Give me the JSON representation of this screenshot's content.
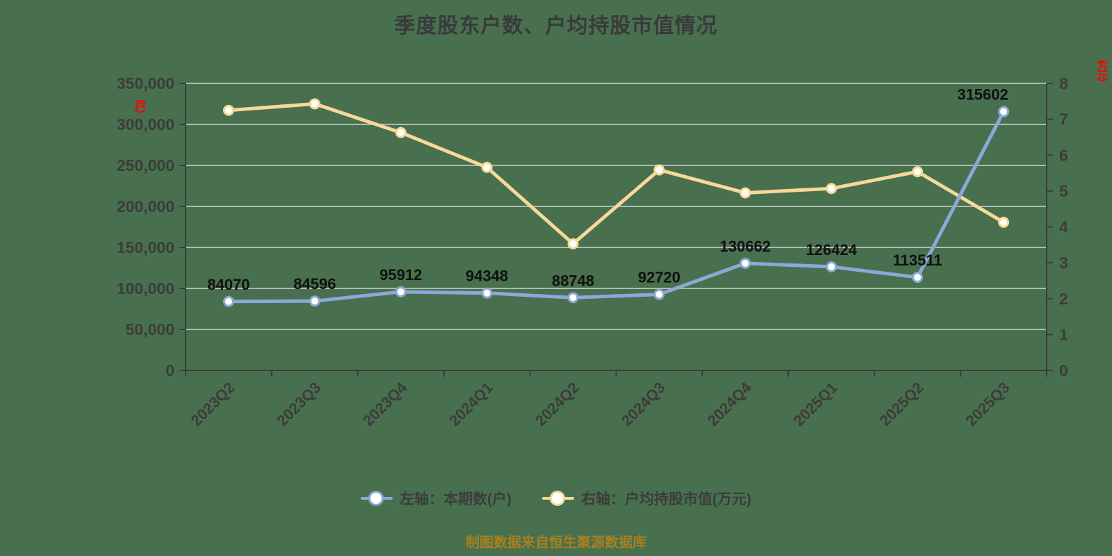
{
  "title": "季度股东户数、户均持股市值情况",
  "left_axis": {
    "unit_label": "（户）",
    "ticks": [
      "350,000",
      "300,000",
      "250,000",
      "200,000",
      "150,000",
      "100,000",
      "50,000",
      "0"
    ]
  },
  "right_axis": {
    "unit_label": "（万元）",
    "ticks": [
      "8",
      "7",
      "6",
      "5",
      "4",
      "3",
      "2",
      "1",
      "0"
    ]
  },
  "chart_data": {
    "type": "line",
    "title": "季度股东户数、户均持股市值情况",
    "categories": [
      "2023Q2",
      "2023Q3",
      "2023Q4",
      "2024Q1",
      "2024Q2",
      "2024Q3",
      "2024Q4",
      "2025Q1",
      "2025Q2",
      "2025Q3"
    ],
    "series": [
      {
        "name": "左轴：本期数(户)",
        "axis": "left",
        "color": "#8CA8D8",
        "marker_fill": "#FFFFFF",
        "show_value_labels": true,
        "values": [
          84070,
          84596,
          95912,
          94348,
          88748,
          92720,
          130662,
          126424,
          113511,
          315602
        ]
      },
      {
        "name": "右轴：户均持股市值(万元)",
        "axis": "right",
        "color": "#F6D998",
        "marker_fill": "#FFFFFF",
        "show_value_labels": false,
        "values": [
          7.25,
          7.43,
          6.63,
          5.66,
          3.53,
          5.59,
          4.95,
          5.07,
          5.54,
          4.13
        ]
      }
    ],
    "left_ylim": [
      0,
      350000
    ],
    "right_ylim": [
      0,
      8
    ],
    "grid": true,
    "legend_position": "bottom"
  },
  "legend": {
    "items": [
      {
        "label": "左轴：本期数(户)",
        "color": "#8CA8D8"
      },
      {
        "label": "右轴：户均持股市值(万元)",
        "color": "#F6D998"
      }
    ]
  },
  "footer": {
    "source_text": "制图数据来自恒生聚源数据库"
  },
  "colors": {
    "background": "#48704F",
    "title_text": "#3A3A3A",
    "axis_text": "#3C3C3C",
    "axis_line": "#3C3C3C",
    "gridline": "#D2D2D2",
    "unit_label_red": "#FE0000",
    "value_label": "#101010",
    "source_text": "#A8801E",
    "marker_fill": "#FFFFFF"
  }
}
